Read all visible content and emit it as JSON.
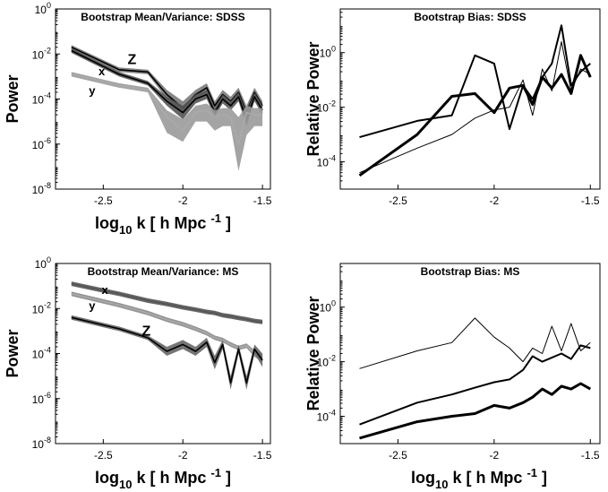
{
  "figure": {
    "description_free": true
  },
  "chart_data": [
    {
      "type": "line",
      "title": "Bootstrap Mean/Variance: SDSS",
      "xlabel": "log10 k [ h Mpc -1 ]",
      "ylabel": "Power",
      "xlim": [
        -2.8,
        -1.45
      ],
      "ylim_log10": [
        -8,
        0
      ],
      "xticks": [
        -2.5,
        -2,
        -1.5
      ],
      "xtick_labels": [
        "-2.5",
        "-2",
        "-1.5"
      ],
      "yticks_log10": [
        0,
        -2,
        -4,
        -6,
        -8
      ],
      "ytick_labels": [
        "10^0",
        "10^-2",
        "10^-4",
        "10^-6",
        "10^-8"
      ],
      "x": [
        -2.7,
        -2.4,
        -2.22,
        -2.1,
        -2.0,
        -1.92,
        -1.85,
        -1.8,
        -1.75,
        -1.7,
        -1.65,
        -1.6,
        -1.55,
        -1.5
      ],
      "series": [
        {
          "name": "Z",
          "label": "Z",
          "color": "#000000",
          "band_color": "#7a7a7a",
          "log10_values": [
            -1.7,
            -2.7,
            -2.8,
            -3.8,
            -4.4,
            -3.8,
            -3.5,
            -4.3,
            -3.8,
            -4.1,
            -3.7,
            -4.6,
            -3.7,
            -4.3
          ],
          "band_log10": [
            [
              -1.8,
              -1.6
            ],
            [
              -2.8,
              -2.6
            ],
            [
              -2.9,
              -2.7
            ],
            [
              -4.0,
              -3.6
            ],
            [
              -4.7,
              -4.1
            ],
            [
              -4.0,
              -3.6
            ],
            [
              -3.7,
              -3.3
            ],
            [
              -4.5,
              -4.1
            ],
            [
              -4.0,
              -3.6
            ],
            [
              -4.3,
              -3.9
            ],
            [
              -3.9,
              -3.5
            ],
            [
              -4.9,
              -4.3
            ],
            [
              -3.9,
              -3.5
            ],
            [
              -4.5,
              -4.1
            ]
          ]
        },
        {
          "name": "x",
          "label": "x",
          "color": "#000000",
          "band_color": "#555555",
          "log10_values": [
            -1.85,
            -2.9,
            -3.3,
            -4.1,
            -4.6,
            -4.0,
            -3.8,
            -4.6,
            -4.0,
            -4.3,
            -3.9,
            -4.9,
            -3.9,
            -4.5
          ],
          "band_log10": [
            [
              -1.95,
              -1.75
            ],
            [
              -3.0,
              -2.8
            ],
            [
              -3.4,
              -3.2
            ],
            [
              -4.3,
              -3.9
            ],
            [
              -4.9,
              -4.3
            ],
            [
              -4.2,
              -3.8
            ],
            [
              -4.0,
              -3.6
            ],
            [
              -4.8,
              -4.4
            ],
            [
              -4.2,
              -3.8
            ],
            [
              -4.5,
              -4.1
            ],
            [
              -4.1,
              -3.7
            ],
            [
              -5.2,
              -4.6
            ],
            [
              -4.1,
              -3.7
            ],
            [
              -4.7,
              -4.3
            ]
          ]
        },
        {
          "name": "y",
          "label": "y",
          "color": "#aaaaaa",
          "band_color": "#9a9a9a",
          "log10_values": [
            -2.9,
            -3.4,
            -3.6,
            -4.8,
            -5.4,
            -4.6,
            -4.5,
            -4.8,
            -4.7,
            -4.8,
            -6.0,
            -4.6,
            -4.7,
            -4.7
          ],
          "band_log10": [
            [
              -3.0,
              -2.8
            ],
            [
              -3.5,
              -3.3
            ],
            [
              -3.7,
              -3.5
            ],
            [
              -5.5,
              -4.5
            ],
            [
              -5.9,
              -4.9
            ],
            [
              -5.0,
              -4.3
            ],
            [
              -5.0,
              -4.2
            ],
            [
              -5.4,
              -4.5
            ],
            [
              -5.2,
              -4.4
            ],
            [
              -5.2,
              -4.4
            ],
            [
              -7.2,
              -4.8
            ],
            [
              -5.6,
              -4.3
            ],
            [
              -5.2,
              -4.4
            ],
            [
              -5.2,
              -4.4
            ]
          ]
        }
      ]
    },
    {
      "type": "line",
      "title": "Bootstrap Bias: SDSS",
      "xlabel": "",
      "ylabel": "Relative Power",
      "xlim": [
        -2.8,
        -1.45
      ],
      "ylim_log10": [
        -5,
        1.6
      ],
      "xticks": [
        -2.5,
        -2,
        -1.5
      ],
      "xtick_labels": [
        "-2.5",
        "-2",
        "-1.5"
      ],
      "yticks_log10": [
        0,
        -2,
        -4
      ],
      "ytick_labels": [
        "10^0",
        "10^-2",
        "10^-4"
      ],
      "series": [
        {
          "name": "bias-medium",
          "color": "#000000",
          "width": 2,
          "x": [
            -2.7,
            -2.4,
            -2.22,
            -2.1,
            -2.0,
            -1.92,
            -1.85,
            -1.8,
            -1.75,
            -1.7,
            -1.65,
            -1.6,
            -1.55,
            -1.5
          ],
          "log10_values": [
            -3.1,
            -2.5,
            -2.3,
            -0.1,
            -0.4,
            -2.8,
            -1.2,
            -1.7,
            -0.9,
            -0.4,
            1.0,
            -1.2,
            -0.7,
            -0.4
          ]
        },
        {
          "name": "bias-thick",
          "color": "#000000",
          "width": 3,
          "x": [
            -2.7,
            -2.4,
            -2.22,
            -2.1,
            -2.0,
            -1.92,
            -1.85,
            -1.8,
            -1.75,
            -1.7,
            -1.65,
            -1.6,
            -1.55,
            -1.5
          ],
          "log10_values": [
            -4.5,
            -3.0,
            -1.6,
            -1.5,
            -2.2,
            -1.3,
            -1.2,
            -1.9,
            -0.9,
            -1.3,
            -0.8,
            -1.5,
            -0.1,
            -0.9
          ]
        },
        {
          "name": "bias-thin",
          "color": "#000000",
          "width": 1,
          "x": [
            -2.7,
            -2.4,
            -2.22,
            -2.1,
            -2.0,
            -1.92,
            -1.85,
            -1.8,
            -1.75,
            -1.7,
            -1.65,
            -1.6,
            -1.55,
            -1.5
          ],
          "log10_values": [
            -4.4,
            -3.5,
            -3.0,
            -2.4,
            -2.1,
            -2.0,
            -1.0,
            -2.3,
            -0.6,
            -1.4,
            0.4,
            -1.4,
            -0.6,
            -0.8
          ]
        }
      ]
    },
    {
      "type": "line",
      "title": "Bootstrap Mean/Variance: MS",
      "xlabel": "log10 k [ h Mpc -1 ]",
      "ylabel": "Power",
      "xlim": [
        -2.8,
        -1.45
      ],
      "ylim_log10": [
        -8,
        0
      ],
      "xticks": [
        -2.5,
        -2,
        -1.5
      ],
      "xtick_labels": [
        "-2.5",
        "-2",
        "-1.5"
      ],
      "yticks_log10": [
        0,
        -2,
        -4,
        -6,
        -8
      ],
      "ytick_labels": [
        "10^0",
        "10^-2",
        "10^-4",
        "10^-6",
        "10^-8"
      ],
      "x": [
        -2.7,
        -2.4,
        -2.22,
        -2.1,
        -2.0,
        -1.92,
        -1.85,
        -1.8,
        -1.75,
        -1.7,
        -1.65,
        -1.6,
        -1.55,
        -1.5
      ],
      "series": [
        {
          "name": "x",
          "label": "x",
          "color": "#555555",
          "band_color": "#555555",
          "log10_values": [
            -0.9,
            -1.35,
            -1.65,
            -1.8,
            -1.95,
            -2.05,
            -2.15,
            -2.2,
            -2.3,
            -2.35,
            -2.42,
            -2.48,
            -2.55,
            -2.6
          ],
          "band_log10": [
            [
              -1.0,
              -0.8
            ],
            [
              -1.45,
              -1.25
            ],
            [
              -1.75,
              -1.55
            ],
            [
              -1.9,
              -1.7
            ],
            [
              -2.05,
              -1.85
            ],
            [
              -2.15,
              -1.95
            ],
            [
              -2.25,
              -2.05
            ],
            [
              -2.3,
              -2.1
            ],
            [
              -2.4,
              -2.2
            ],
            [
              -2.45,
              -2.25
            ],
            [
              -2.52,
              -2.32
            ],
            [
              -2.58,
              -2.38
            ],
            [
              -2.65,
              -2.45
            ],
            [
              -2.7,
              -2.5
            ]
          ]
        },
        {
          "name": "y",
          "label": "y",
          "color": "#aaaaaa",
          "band_color": "#888888",
          "log10_values": [
            -1.35,
            -1.85,
            -2.2,
            -2.5,
            -2.7,
            -2.9,
            -3.1,
            -3.3,
            -3.4,
            -3.6,
            -3.75,
            -3.65,
            -4.0,
            -4.2
          ],
          "band_log10": [
            [
              -1.45,
              -1.25
            ],
            [
              -1.95,
              -1.75
            ],
            [
              -2.3,
              -2.1
            ],
            [
              -2.6,
              -2.4
            ],
            [
              -2.8,
              -2.6
            ],
            [
              -3.0,
              -2.8
            ],
            [
              -3.2,
              -3.0
            ],
            [
              -3.4,
              -3.2
            ],
            [
              -3.5,
              -3.3
            ],
            [
              -3.7,
              -3.5
            ],
            [
              -3.85,
              -3.65
            ],
            [
              -3.75,
              -3.55
            ],
            [
              -4.15,
              -3.85
            ],
            [
              -4.35,
              -4.05
            ]
          ]
        },
        {
          "name": "Z",
          "label": "Z",
          "color": "#000000",
          "band_color": "#666666",
          "log10_values": [
            -2.4,
            -2.9,
            -3.3,
            -3.9,
            -3.6,
            -3.9,
            -3.5,
            -4.4,
            -3.6,
            -5.3,
            -3.8,
            -5.3,
            -3.8,
            -4.3
          ],
          "band_log10": [
            [
              -2.5,
              -2.3
            ],
            [
              -3.0,
              -2.8
            ],
            [
              -3.4,
              -3.2
            ],
            [
              -4.1,
              -3.7
            ],
            [
              -3.8,
              -3.4
            ],
            [
              -4.1,
              -3.7
            ],
            [
              -3.7,
              -3.3
            ],
            [
              -4.7,
              -4.1
            ],
            [
              -3.8,
              -3.4
            ],
            [
              -5.6,
              -5.0
            ],
            [
              -4.0,
              -3.6
            ],
            [
              -5.6,
              -5.0
            ],
            [
              -4.0,
              -3.6
            ],
            [
              -4.6,
              -4.0
            ]
          ]
        }
      ]
    },
    {
      "type": "line",
      "title": "Bootstrap Bias: MS",
      "xlabel": "log10 k [ h Mpc -1 ]",
      "ylabel": "Relative Power",
      "xlim": [
        -2.8,
        -1.45
      ],
      "ylim_log10": [
        -5,
        1.6
      ],
      "xticks": [
        -2.5,
        -2,
        -1.5
      ],
      "xtick_labels": [
        "-2.5",
        "-2",
        "-1.5"
      ],
      "yticks_log10": [
        0,
        -2,
        -4
      ],
      "ytick_labels": [
        "10^0",
        "10^-2",
        "10^-4"
      ],
      "series": [
        {
          "name": "bias-thin",
          "color": "#000000",
          "width": 1,
          "x": [
            -2.7,
            -2.4,
            -2.22,
            -2.1,
            -2.0,
            -1.92,
            -1.85,
            -1.8,
            -1.75,
            -1.7,
            -1.65,
            -1.6,
            -1.55,
            -1.5
          ],
          "log10_values": [
            -2.25,
            -1.6,
            -1.3,
            -0.4,
            -1.1,
            -1.5,
            -2.0,
            -1.5,
            -1.7,
            -0.7,
            -1.6,
            -0.6,
            -1.6,
            -1.3
          ]
        },
        {
          "name": "bias-medium",
          "color": "#000000",
          "width": 2,
          "x": [
            -2.7,
            -2.4,
            -2.22,
            -2.1,
            -2.0,
            -1.92,
            -1.85,
            -1.8,
            -1.75,
            -1.7,
            -1.65,
            -1.6,
            -1.55,
            -1.5
          ],
          "log10_values": [
            -4.3,
            -3.5,
            -3.2,
            -2.95,
            -2.75,
            -2.65,
            -2.3,
            -1.8,
            -2.0,
            -1.85,
            -1.7,
            -1.9,
            -1.4,
            -1.5
          ]
        },
        {
          "name": "bias-thick",
          "color": "#000000",
          "width": 3,
          "x": [
            -2.7,
            -2.4,
            -2.22,
            -2.1,
            -2.0,
            -1.92,
            -1.85,
            -1.8,
            -1.75,
            -1.7,
            -1.65,
            -1.6,
            -1.55,
            -1.5
          ],
          "log10_values": [
            -4.8,
            -4.2,
            -4.0,
            -3.9,
            -3.6,
            -3.7,
            -3.5,
            -3.3,
            -3.0,
            -3.2,
            -2.9,
            -3.0,
            -2.8,
            -3.0
          ]
        }
      ]
    }
  ]
}
